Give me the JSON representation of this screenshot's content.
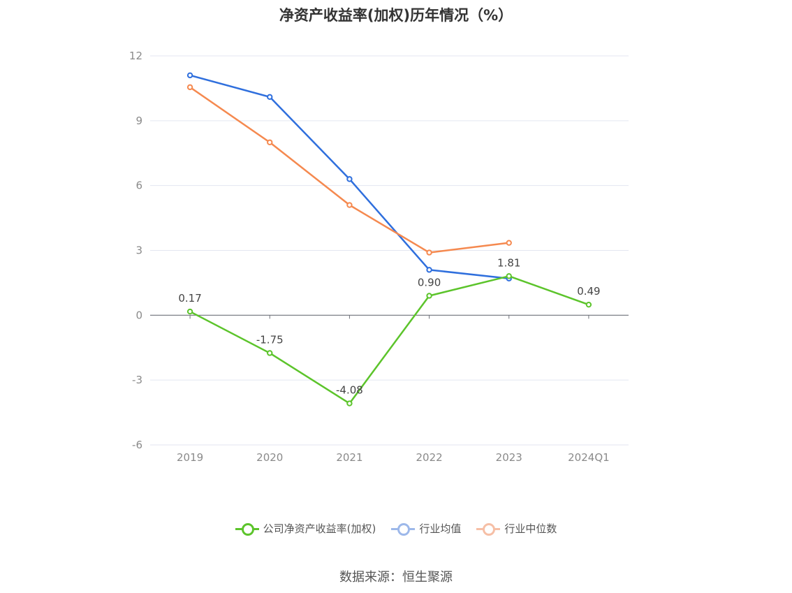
{
  "chart_data": {
    "type": "line",
    "title": "净资产收益率(加权)历年情况（%）",
    "categories": [
      "2019",
      "2020",
      "2021",
      "2022",
      "2023",
      "2024Q1"
    ],
    "ylim": [
      -6,
      12
    ],
    "yticks": [
      -6,
      -3,
      0,
      3,
      6,
      9,
      12
    ],
    "grid": true,
    "legend_position": "bottom",
    "series": [
      {
        "name": "公司净资产收益率(加权)",
        "color": "#5cc42b",
        "values": [
          0.17,
          -1.75,
          -4.08,
          0.9,
          1.81,
          0.49
        ],
        "labels": [
          "0.17",
          "-1.75",
          "-4.08",
          "0.90",
          "1.81",
          "0.49"
        ]
      },
      {
        "name": "行业均值",
        "color": "#2f6fdd",
        "values": [
          11.1,
          10.1,
          6.3,
          2.1,
          1.7,
          null
        ]
      },
      {
        "name": "行业中位数",
        "color": "#f5894f",
        "values": [
          10.55,
          8.0,
          5.1,
          2.9,
          3.35,
          null
        ]
      }
    ]
  },
  "source": "数据来源：恒生聚源"
}
